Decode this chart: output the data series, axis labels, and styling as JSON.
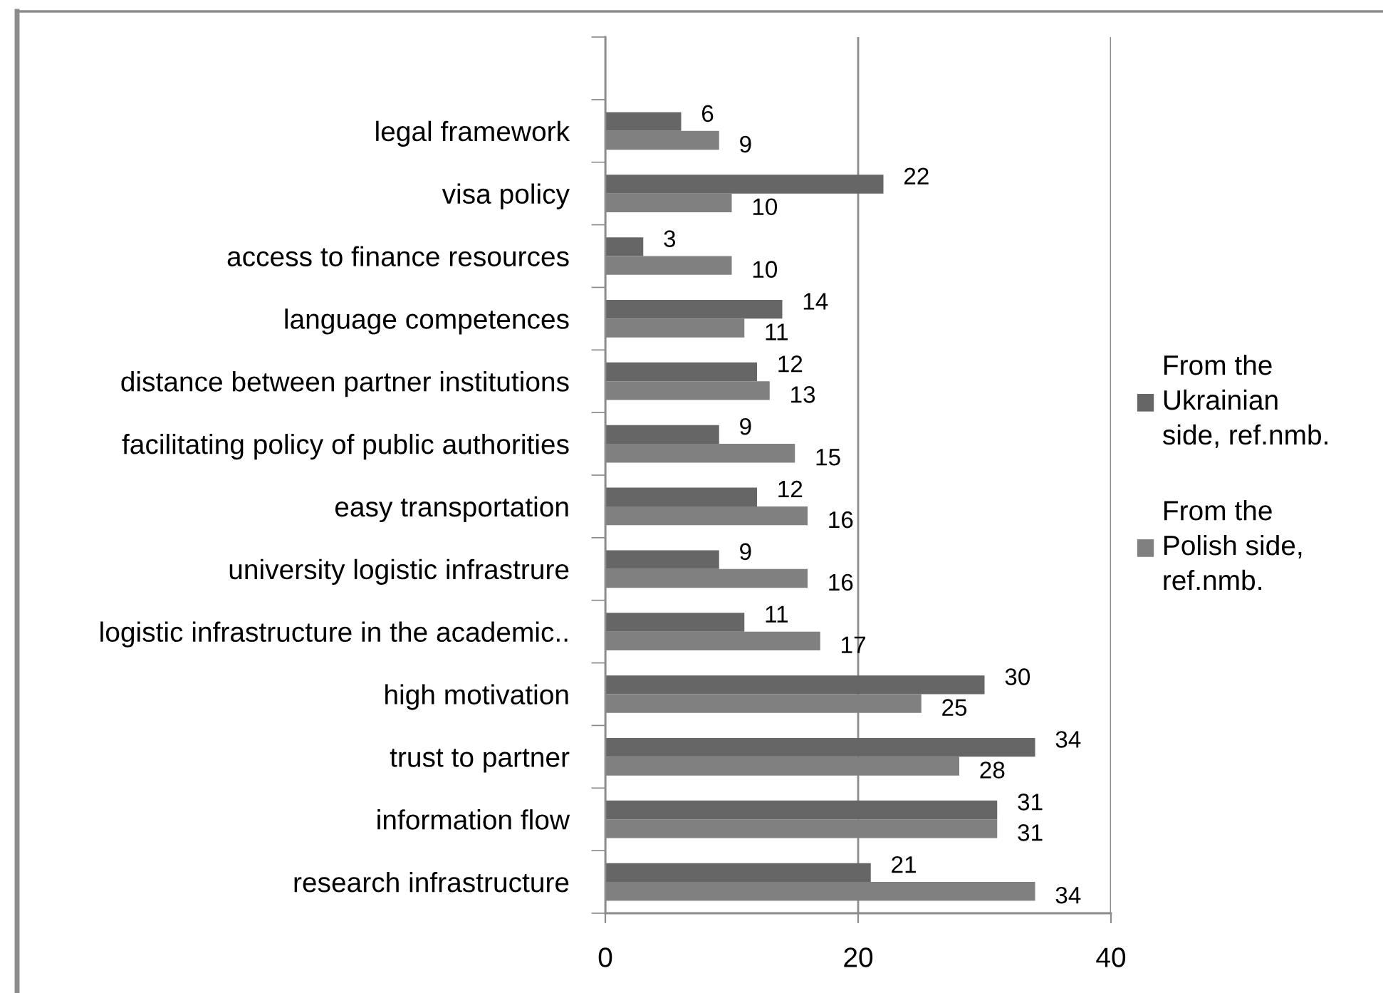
{
  "chart_data": {
    "type": "bar",
    "orientation": "horizontal",
    "categories": [
      null,
      "legal framework",
      "visa policy",
      "access to finance resources",
      "language competences",
      "distance between partner institutions",
      "facilitating policy of public authorities",
      "easy transportation",
      "university logistic infrastrure",
      "logistic infrastructure in the academic..",
      "high motivation",
      "trust to partner",
      "information flow",
      "research infrastructure"
    ],
    "series": [
      {
        "name": "From the Ukrainian side, ref.nmb.",
        "color": "#666666",
        "values": [
          null,
          6,
          22,
          3,
          14,
          12,
          9,
          12,
          9,
          11,
          30,
          34,
          31,
          21
        ]
      },
      {
        "name": "From the Polish side, ref.nmb.",
        "color": "#808080",
        "values": [
          null,
          9,
          10,
          10,
          11,
          13,
          15,
          16,
          16,
          17,
          25,
          28,
          31,
          34
        ]
      }
    ],
    "xlim": [
      0,
      40
    ],
    "xticks": [
      0,
      20,
      40
    ],
    "grid": "x",
    "legend": "right",
    "data_labels": true
  }
}
